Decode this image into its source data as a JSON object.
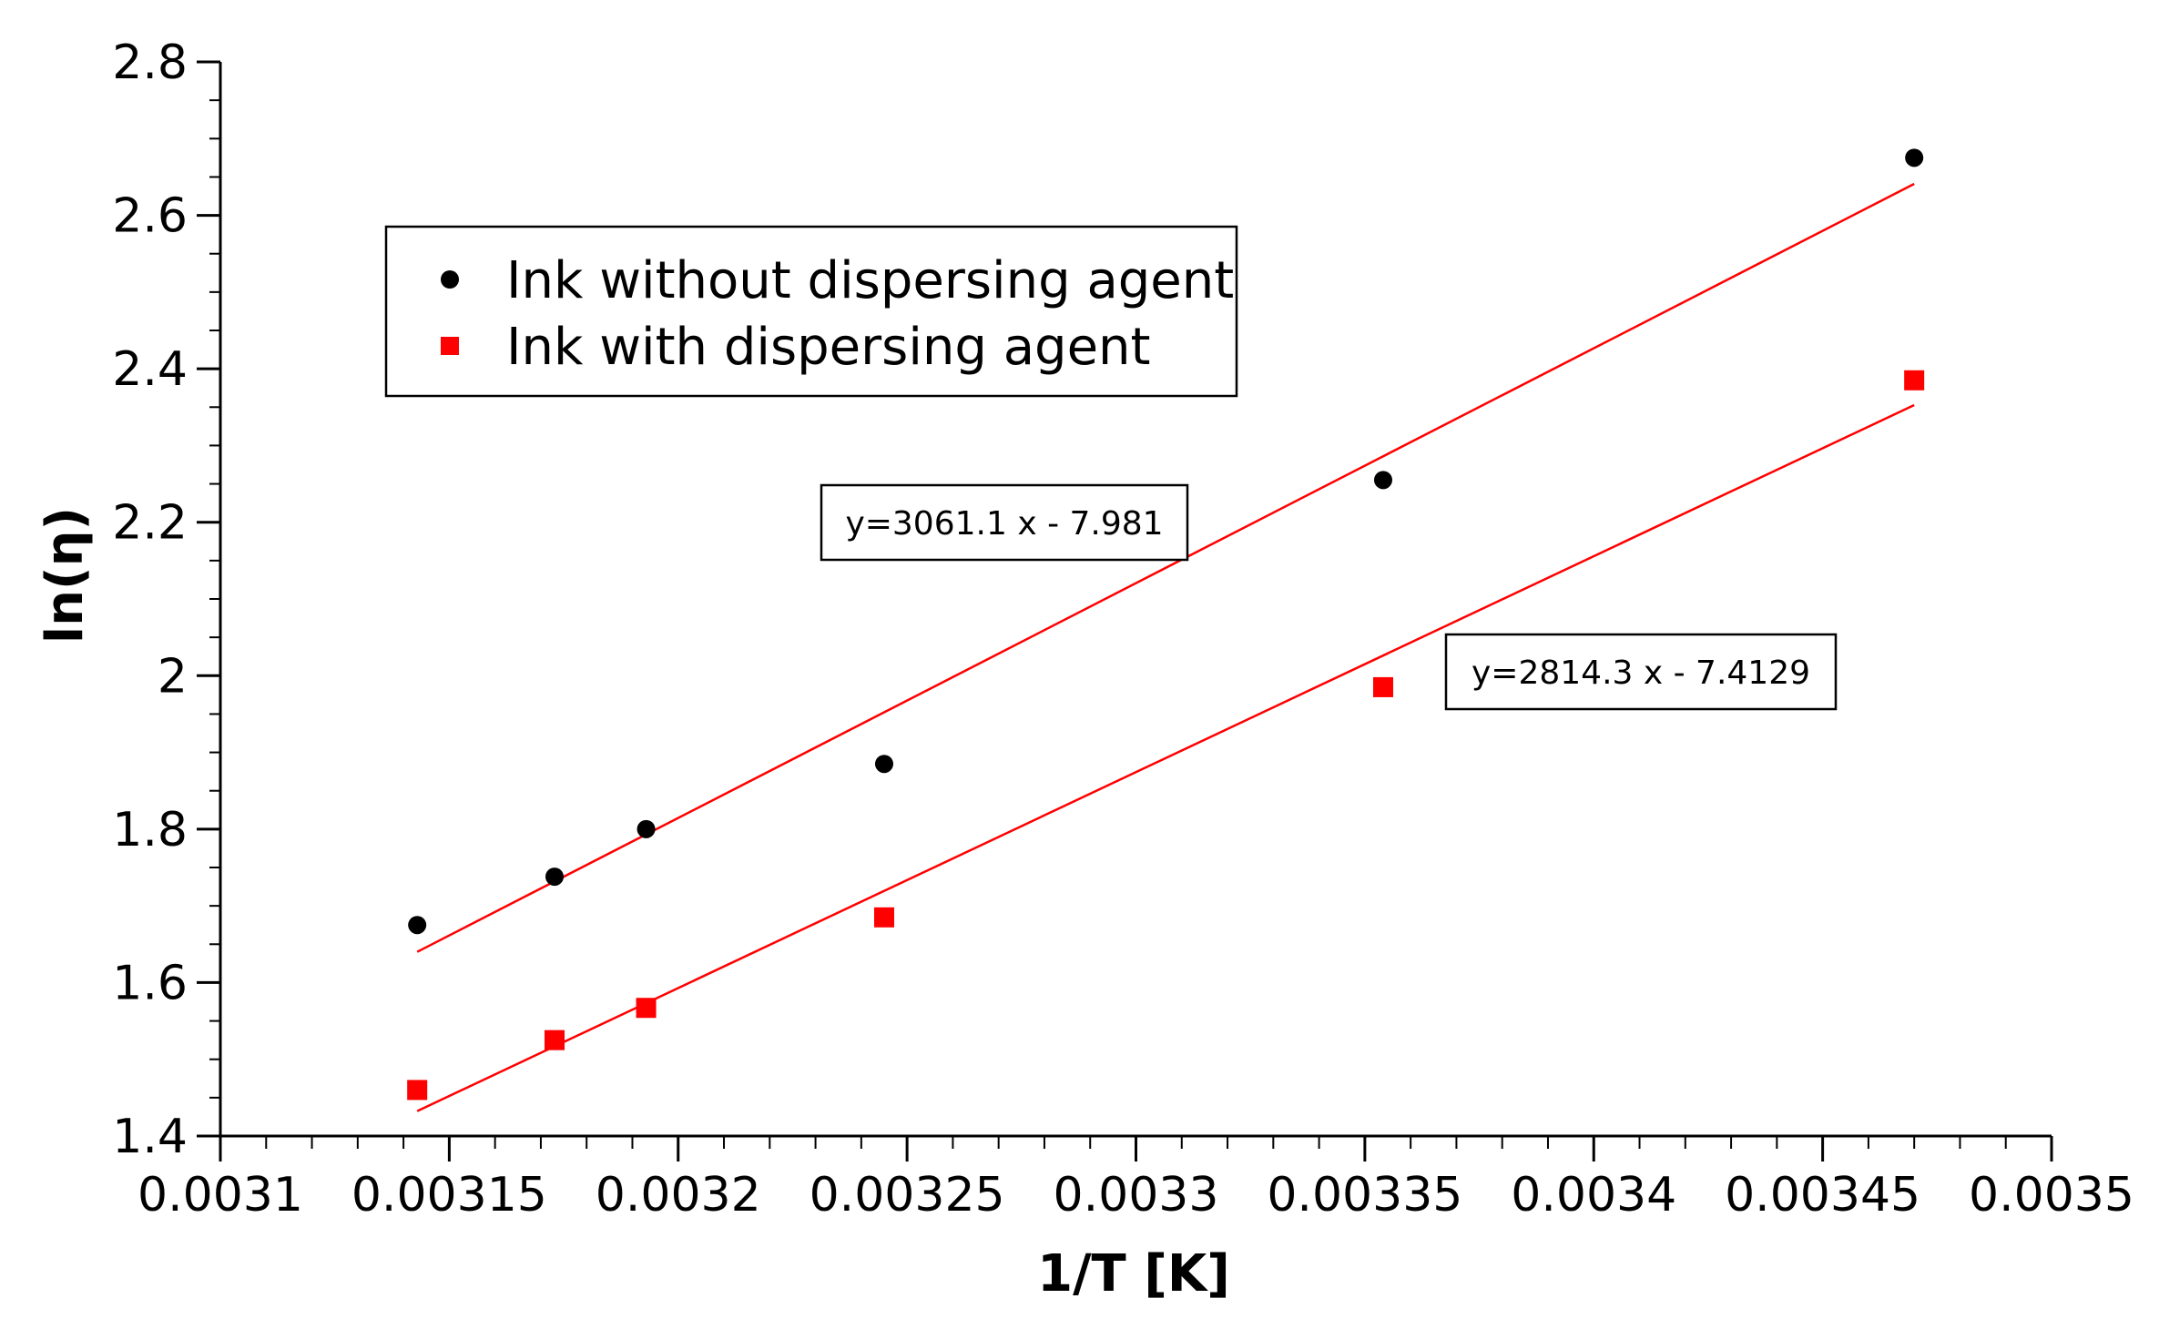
{
  "chart_data": {
    "type": "scatter",
    "title": "",
    "xlabel": "1/T [K]",
    "ylabel": "ln(η)",
    "xlim": [
      0.0031,
      0.0035
    ],
    "ylim": [
      1.4,
      2.8
    ],
    "x_ticks": [
      0.0031,
      0.00315,
      0.0032,
      0.00325,
      0.0033,
      0.00335,
      0.0034,
      0.00345,
      0.0035
    ],
    "x_tick_labels": [
      "0.0031",
      "0.00315",
      "0.0032",
      "0.00325",
      "0.0033",
      "0.00335",
      "0.0034",
      "0.00345",
      "0.0035"
    ],
    "x_minor_step": 1e-05,
    "y_ticks": [
      1.4,
      1.6,
      1.8,
      2.0,
      2.2,
      2.4,
      2.6,
      2.8
    ],
    "y_tick_labels": [
      "1.4",
      "1.6",
      "1.8",
      "2",
      "2.2",
      "2.4",
      "2.6",
      "2.8"
    ],
    "y_minor_step": 0.05,
    "grid": false,
    "legend_position": "top-left",
    "series": [
      {
        "name": "Ink without dispersing agent",
        "marker": "circle",
        "color": "#000000",
        "x": [
          0.003143,
          0.003173,
          0.003193,
          0.003245,
          0.003354,
          0.00347
        ],
        "y": [
          1.675,
          1.738,
          1.8,
          1.885,
          2.255,
          2.675
        ],
        "fit": {
          "label": "y=3061.1 x - 7.981",
          "slope": 3061.1,
          "intercept": -7.981,
          "x_range": [
            0.003143,
            0.00347
          ],
          "color": "#ff0000"
        }
      },
      {
        "name": "Ink with dispersing agent",
        "marker": "square",
        "color": "#ff0000",
        "x": [
          0.003143,
          0.003173,
          0.003193,
          0.003245,
          0.003354,
          0.00347
        ],
        "y": [
          1.46,
          1.525,
          1.567,
          1.685,
          1.985,
          2.385
        ],
        "fit": {
          "label": "y=2814.3 x - 7.4129",
          "slope": 2814.3,
          "intercept": -7.4129,
          "x_range": [
            0.003143,
            0.00347
          ],
          "color": "#ff0000"
        }
      }
    ]
  }
}
